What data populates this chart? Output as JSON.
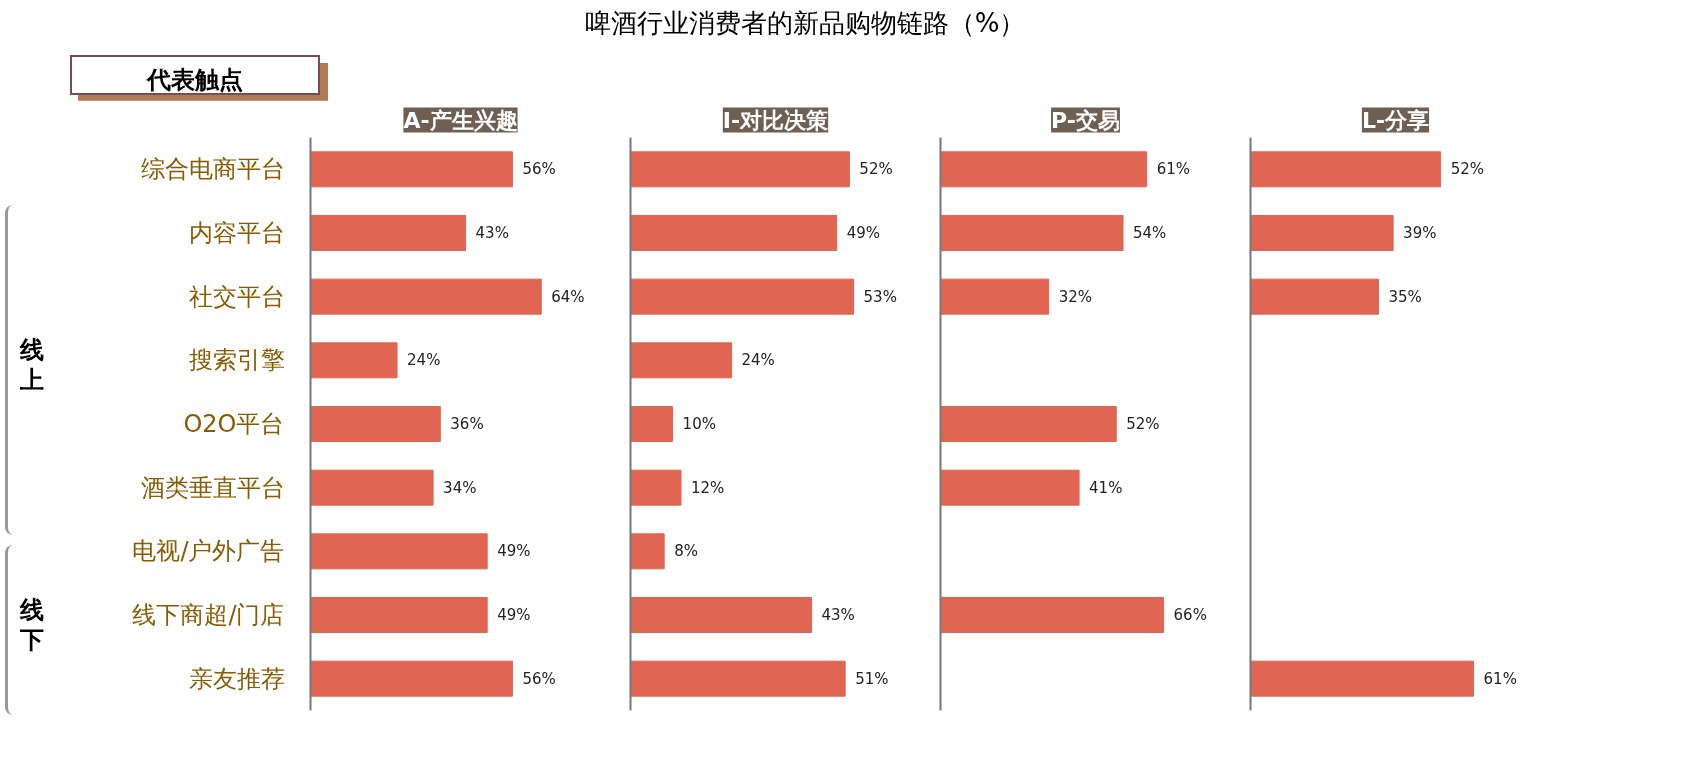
{
  "chart_data": [
    {
      "type": "bar",
      "orientation": "horizontal",
      "title": "A-产生兴趣",
      "categories": [
        "综合电商平台",
        "内容平台",
        "社交平台",
        "搜索引擎",
        "O2O平台",
        "酒类垂直平台",
        "电视/户外广告",
        "线下商超/门店",
        "亲友推荐"
      ],
      "values": [
        56,
        43,
        64,
        24,
        36,
        34,
        49,
        49,
        56
      ],
      "value_labels": [
        "56%",
        "43%",
        "64%",
        "24%",
        "36%",
        "34%",
        "49%",
        "49%",
        "56%"
      ],
      "color": "#e06552",
      "tick_labels": "y",
      "grid": false,
      "legend": false,
      "annotations": [
        "啤酒行业消费者的新品购物链路（%）",
        "代表触点",
        "线上",
        "线下"
      ]
    },
    {
      "type": "bar",
      "orientation": "horizontal",
      "title": "I-对比决策",
      "values": [
        52,
        49,
        53,
        24,
        10,
        12,
        8,
        43,
        51
      ],
      "value_labels": [
        "52%",
        "49%",
        "53%",
        "24%",
        "10%",
        "12%",
        "8%",
        "43%",
        "51%"
      ],
      "color": "#e06552",
      "tick_labels": false,
      "grid": false,
      "legend": false
    },
    {
      "type": "bar",
      "orientation": "horizontal",
      "title": "P-交易",
      "values": [
        61,
        54,
        32,
        null,
        52,
        41,
        null,
        66,
        null
      ],
      "value_labels": [
        "61%",
        "54%",
        "32%",
        null,
        "52%",
        "41%",
        null,
        "66%",
        null
      ],
      "color": "#e06552",
      "tick_labels": false,
      "grid": false,
      "legend": false
    },
    {
      "type": "bar",
      "orientation": "horizontal",
      "title": "L-分享",
      "values": [
        52,
        39,
        35,
        null,
        null,
        null,
        null,
        null,
        61
      ],
      "value_labels": [
        "52%",
        "39%",
        "35%",
        null,
        null,
        null,
        null,
        null,
        "61%"
      ],
      "color": "#e06552",
      "tick_labels": false,
      "grid": false,
      "legend": false
    }
  ]
}
